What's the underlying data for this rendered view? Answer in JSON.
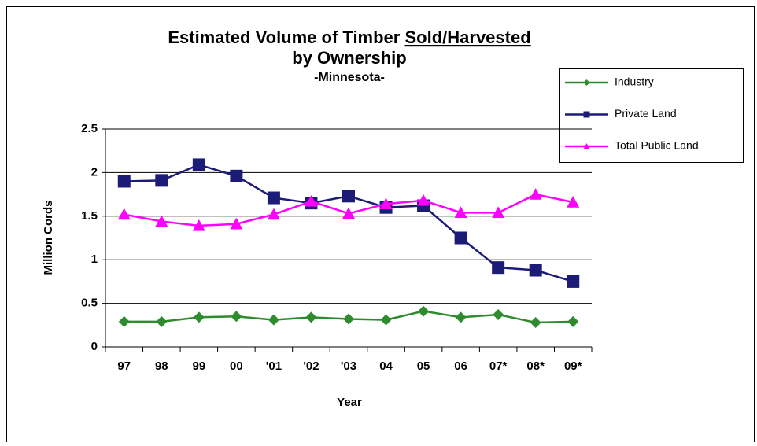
{
  "chart_data": {
    "type": "line",
    "title": {
      "lead": "Estimated Volume of Timber",
      "underlined": "Sold/Harvested",
      "line2": "by Ownership"
    },
    "subtitle": "-Minnesota-",
    "x_label": "Year",
    "y_label": "Million Cords",
    "categories": [
      "97",
      "98",
      "99",
      "00",
      "'01",
      "'02",
      "'03",
      "04",
      "05",
      "06",
      "07*",
      "08*",
      "09*"
    ],
    "series": [
      {
        "name": "Industry",
        "color": "#2e8b2e",
        "marker": "diamond",
        "values": [
          0.29,
          0.29,
          0.34,
          0.35,
          0.31,
          0.34,
          0.32,
          0.31,
          0.41,
          0.34,
          0.37,
          0.28,
          0.29
        ]
      },
      {
        "name": "Private Land",
        "color": "#1c1c78",
        "marker": "square",
        "values": [
          1.9,
          1.91,
          2.09,
          1.96,
          1.71,
          1.65,
          1.73,
          1.6,
          1.62,
          1.25,
          0.91,
          0.88,
          0.75
        ]
      },
      {
        "name": "Total Public Land",
        "color": "#ff00ff",
        "marker": "triangle",
        "values": [
          1.52,
          1.44,
          1.39,
          1.41,
          1.52,
          1.67,
          1.53,
          1.64,
          1.68,
          1.54,
          1.54,
          1.75,
          1.66
        ]
      }
    ],
    "ylim": [
      0,
      2.5
    ],
    "yticks": [
      0,
      0.5,
      1,
      1.5,
      2,
      2.5
    ],
    "grid": true,
    "legend": "upper right"
  }
}
